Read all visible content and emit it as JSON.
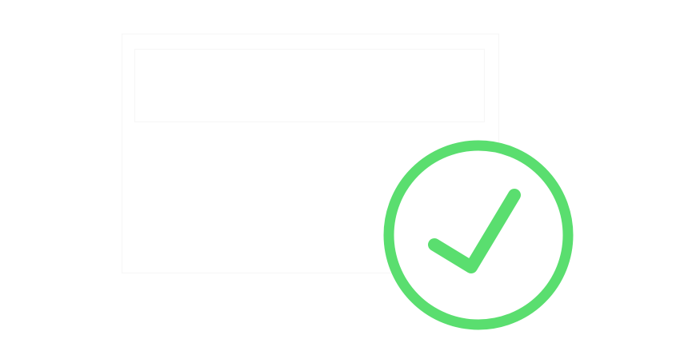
{
  "colors": {
    "background": "#ffffff",
    "faint_outline": "#f6f6f6",
    "success": "#5ade6f"
  },
  "icons": {
    "document": "document-outline-icon",
    "success": "check-circle-icon"
  }
}
